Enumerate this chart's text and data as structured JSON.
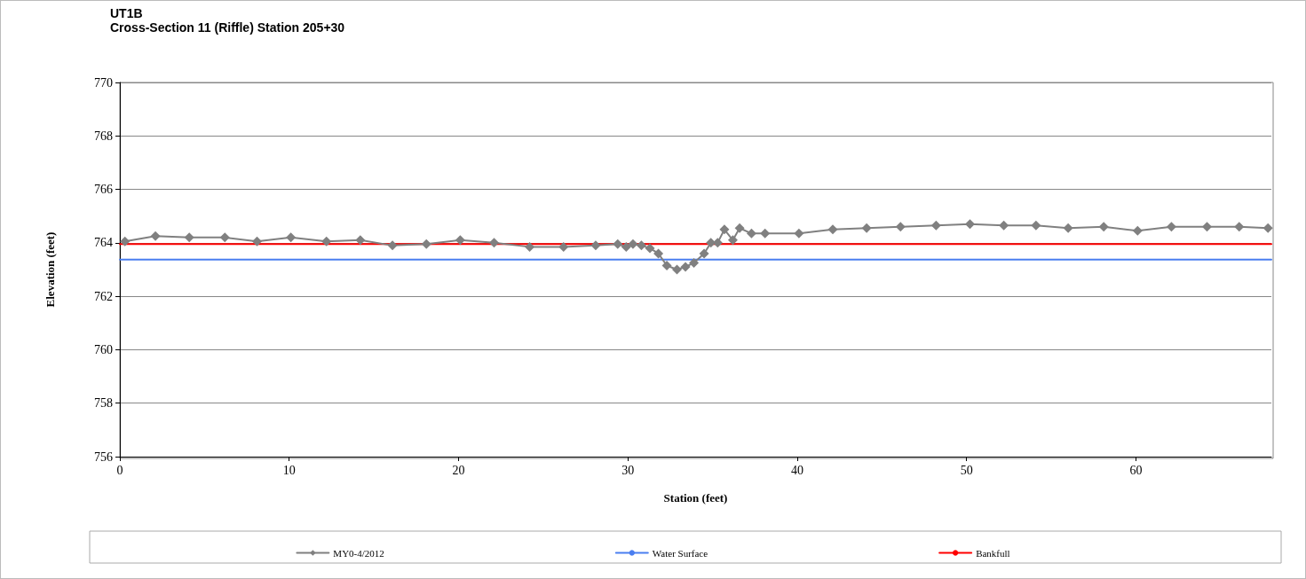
{
  "chart_data": {
    "type": "line",
    "title": "UT1B",
    "subtitle": "Cross-Section 11 (Riffle) Station 205+30",
    "xlabel": "Station (feet)",
    "ylabel": "Elevation (feet)",
    "xlim": [
      0,
      68
    ],
    "xticks": [
      0,
      10,
      20,
      30,
      40,
      50,
      60
    ],
    "ylim": [
      756,
      770
    ],
    "yticks": [
      756,
      758,
      760,
      762,
      764,
      766,
      768,
      770
    ],
    "grid": "y",
    "legend": "bottom",
    "series": [
      {
        "name": "MY0-4/2012",
        "color": "#808080",
        "marker": "diamond",
        "x": [
          0.3,
          2.1,
          4.1,
          6.2,
          8.1,
          10.1,
          12.2,
          14.2,
          16.1,
          18.1,
          20.1,
          22.1,
          24.2,
          26.2,
          28.1,
          29.4,
          29.9,
          30.3,
          30.8,
          31.3,
          31.8,
          32.3,
          32.9,
          33.4,
          33.9,
          34.5,
          34.9,
          35.3,
          35.7,
          36.2,
          36.6,
          37.3,
          38.1,
          40.1,
          42.1,
          44.1,
          46.1,
          48.2,
          50.2,
          52.2,
          54.1,
          56.0,
          58.1,
          60.1,
          62.1,
          64.2,
          66.1,
          67.8
        ],
        "values": [
          764.05,
          764.25,
          764.2,
          764.2,
          764.05,
          764.2,
          764.05,
          764.1,
          763.9,
          763.95,
          764.1,
          764.0,
          763.85,
          763.85,
          763.9,
          763.95,
          763.85,
          763.95,
          763.9,
          763.8,
          763.6,
          763.15,
          763.0,
          763.1,
          763.25,
          763.6,
          764.0,
          764.0,
          764.5,
          764.1,
          764.55,
          764.35,
          764.35,
          764.35,
          764.5,
          764.55,
          764.6,
          764.65,
          764.7,
          764.65,
          764.65,
          764.55,
          764.6,
          764.45,
          764.6,
          764.6,
          764.6,
          764.55
        ]
      },
      {
        "name": "Water Surface",
        "color": "#4a7ef0",
        "marker": "none",
        "x": [
          0,
          68
        ],
        "values": [
          763.37,
          763.37
        ]
      },
      {
        "name": "Bankfull",
        "color": "#ff0000",
        "marker": "none",
        "x": [
          0,
          68
        ],
        "values": [
          763.95,
          763.95
        ]
      }
    ]
  }
}
